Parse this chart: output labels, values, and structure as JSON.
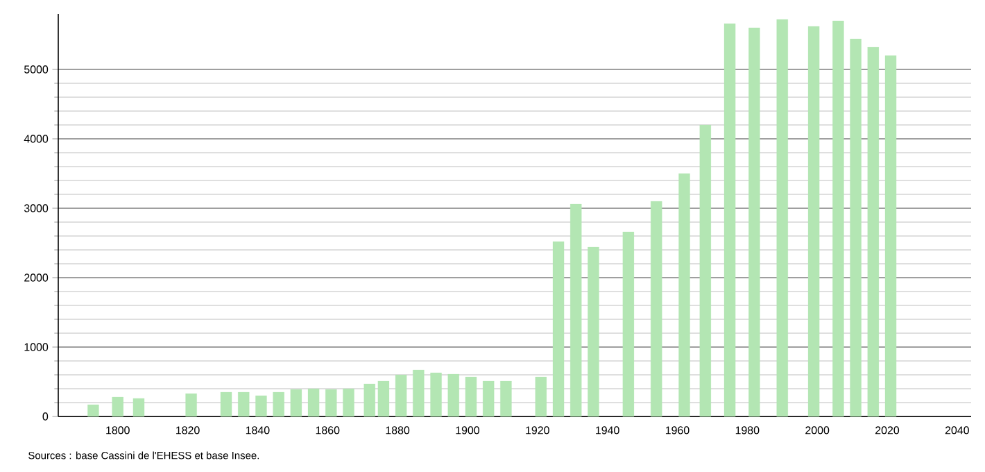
{
  "chart_data": {
    "type": "bar",
    "color": "#b3e6b3",
    "x": [
      1793,
      1800,
      1806,
      1821,
      1831,
      1836,
      1841,
      1846,
      1851,
      1856,
      1861,
      1866,
      1872,
      1876,
      1881,
      1886,
      1891,
      1896,
      1901,
      1906,
      1911,
      1921,
      1926,
      1931,
      1936,
      1946,
      1954,
      1962,
      1968,
      1975,
      1982,
      1990,
      1999,
      2006,
      2011,
      2016,
      2021
    ],
    "values": [
      170,
      280,
      260,
      330,
      350,
      350,
      300,
      350,
      390,
      400,
      390,
      400,
      470,
      510,
      600,
      670,
      630,
      610,
      570,
      510,
      510,
      570,
      2520,
      3060,
      2440,
      2660,
      3100,
      3500,
      4200,
      5660,
      5600,
      5720,
      5620,
      5700,
      5440,
      5320,
      5200
    ],
    "xlim": [
      1783,
      2044
    ],
    "ylim": [
      0,
      5800
    ],
    "xticks": [
      1800,
      1820,
      1840,
      1860,
      1880,
      1900,
      1920,
      1940,
      1960,
      1980,
      2000,
      2020,
      2040
    ],
    "yticks": [
      0,
      1000,
      2000,
      3000,
      4000,
      5000
    ],
    "grid": "y",
    "annotations": [
      "Sources : base Cassini de l'EHESS et base Insee."
    ]
  }
}
